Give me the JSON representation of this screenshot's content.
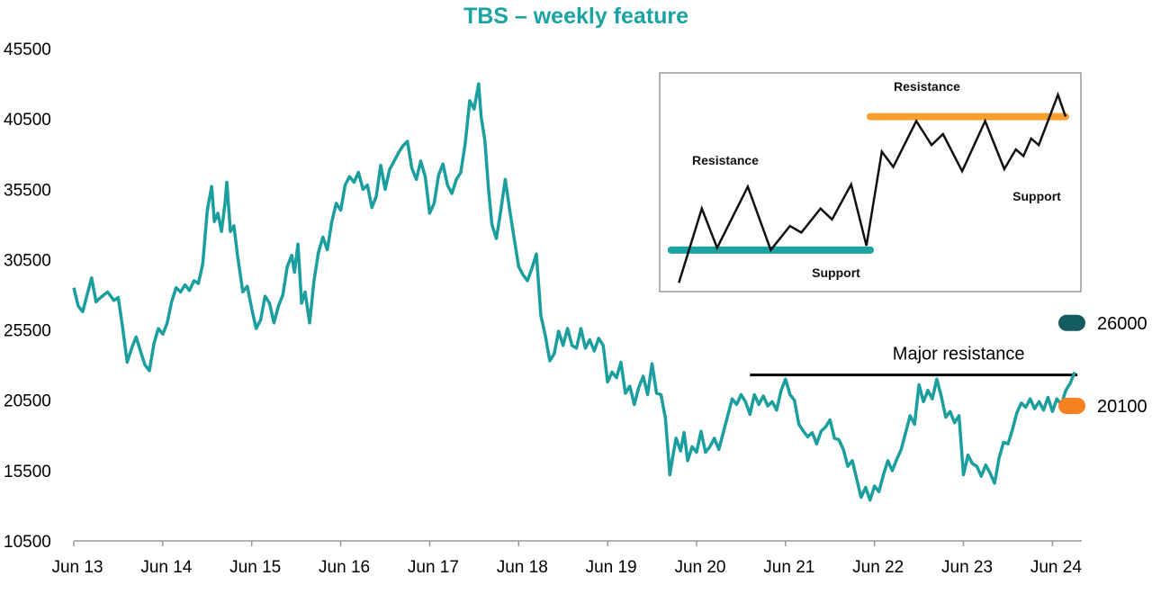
{
  "chart_data": {
    "type": "line",
    "title": "TBS – weekly feature",
    "xlabel": "",
    "ylabel": "",
    "ylim": [
      10500,
      45500
    ],
    "y_ticks": [
      "45500",
      "40500",
      "35500",
      "30500",
      "25500",
      "20500",
      "15500",
      "10500"
    ],
    "x_ticks": [
      "Jun 13",
      "Jun 14",
      "Jun 15",
      "Jun 16",
      "Jun 17",
      "Jun 18",
      "Jun 19",
      "Jun 20",
      "Jun 21",
      "Jun 22",
      "Jun 23",
      "Jun 24"
    ],
    "xlim": [
      2013.0,
      2024.33
    ],
    "grid": false,
    "colors": {
      "line": "#1a9e9e",
      "resistance": "#000000",
      "tag_high": "#135b5e",
      "tag_low": "#f5821f",
      "title": "#1aa3a3"
    },
    "series": [
      {
        "values": [
          [
            2013.0,
            28500
          ],
          [
            2013.05,
            27200
          ],
          [
            2013.1,
            26800
          ],
          [
            2013.15,
            28000
          ],
          [
            2013.2,
            29200
          ],
          [
            2013.25,
            27500
          ],
          [
            2013.3,
            27800
          ],
          [
            2013.38,
            28200
          ],
          [
            2013.45,
            27600
          ],
          [
            2013.5,
            27800
          ],
          [
            2013.55,
            25600
          ],
          [
            2013.6,
            23200
          ],
          [
            2013.65,
            24200
          ],
          [
            2013.7,
            25000
          ],
          [
            2013.75,
            24000
          ],
          [
            2013.8,
            23000
          ],
          [
            2013.85,
            22600
          ],
          [
            2013.9,
            24500
          ],
          [
            2013.95,
            25600
          ],
          [
            2014.0,
            25200
          ],
          [
            2014.05,
            26000
          ],
          [
            2014.1,
            27500
          ],
          [
            2014.15,
            28500
          ],
          [
            2014.2,
            28200
          ],
          [
            2014.25,
            28700
          ],
          [
            2014.3,
            28300
          ],
          [
            2014.35,
            29000
          ],
          [
            2014.4,
            28800
          ],
          [
            2014.45,
            30200
          ],
          [
            2014.5,
            34000
          ],
          [
            2014.55,
            35700
          ],
          [
            2014.58,
            33200
          ],
          [
            2014.62,
            33800
          ],
          [
            2014.66,
            32500
          ],
          [
            2014.7,
            34500
          ],
          [
            2014.72,
            36000
          ],
          [
            2014.76,
            32500
          ],
          [
            2014.8,
            32900
          ],
          [
            2014.84,
            30800
          ],
          [
            2014.9,
            28200
          ],
          [
            2014.95,
            28600
          ],
          [
            2015.0,
            27000
          ],
          [
            2015.05,
            25600
          ],
          [
            2015.1,
            26200
          ],
          [
            2015.15,
            27900
          ],
          [
            2015.2,
            27400
          ],
          [
            2015.25,
            26000
          ],
          [
            2015.3,
            27200
          ],
          [
            2015.35,
            28000
          ],
          [
            2015.4,
            30000
          ],
          [
            2015.45,
            30800
          ],
          [
            2015.48,
            29600
          ],
          [
            2015.52,
            31600
          ],
          [
            2015.56,
            27400
          ],
          [
            2015.6,
            28200
          ],
          [
            2015.65,
            26000
          ],
          [
            2015.7,
            29000
          ],
          [
            2015.75,
            31000
          ],
          [
            2015.8,
            32100
          ],
          [
            2015.85,
            31200
          ],
          [
            2015.9,
            33200
          ],
          [
            2015.95,
            34500
          ],
          [
            2016.0,
            34000
          ],
          [
            2016.05,
            35800
          ],
          [
            2016.1,
            36400
          ],
          [
            2016.15,
            36000
          ],
          [
            2016.2,
            36700
          ],
          [
            2016.25,
            35500
          ],
          [
            2016.3,
            35800
          ],
          [
            2016.35,
            34200
          ],
          [
            2016.4,
            35000
          ],
          [
            2016.45,
            37200
          ],
          [
            2016.5,
            35500
          ],
          [
            2016.55,
            36900
          ],
          [
            2016.6,
            37500
          ],
          [
            2016.65,
            38100
          ],
          [
            2016.7,
            38600
          ],
          [
            2016.75,
            38900
          ],
          [
            2016.8,
            37000
          ],
          [
            2016.85,
            36200
          ],
          [
            2016.9,
            37500
          ],
          [
            2016.95,
            36400
          ],
          [
            2017.0,
            33800
          ],
          [
            2017.05,
            34500
          ],
          [
            2017.1,
            36500
          ],
          [
            2017.15,
            37300
          ],
          [
            2017.2,
            35800
          ],
          [
            2017.25,
            35200
          ],
          [
            2017.3,
            36200
          ],
          [
            2017.35,
            36700
          ],
          [
            2017.4,
            38800
          ],
          [
            2017.45,
            41800
          ],
          [
            2017.5,
            41200
          ],
          [
            2017.55,
            43000
          ],
          [
            2017.58,
            40600
          ],
          [
            2017.62,
            39000
          ],
          [
            2017.66,
            35600
          ],
          [
            2017.7,
            33000
          ],
          [
            2017.75,
            32000
          ],
          [
            2017.8,
            34000
          ],
          [
            2017.85,
            36200
          ],
          [
            2017.9,
            34000
          ],
          [
            2017.95,
            32000
          ],
          [
            2018.0,
            30000
          ],
          [
            2018.05,
            29400
          ],
          [
            2018.1,
            29000
          ],
          [
            2018.15,
            29900
          ],
          [
            2018.2,
            30900
          ],
          [
            2018.25,
            26500
          ],
          [
            2018.3,
            25100
          ],
          [
            2018.35,
            23300
          ],
          [
            2018.4,
            23800
          ],
          [
            2018.45,
            25400
          ],
          [
            2018.5,
            24400
          ],
          [
            2018.55,
            25600
          ],
          [
            2018.6,
            24400
          ],
          [
            2018.65,
            24200
          ],
          [
            2018.7,
            25600
          ],
          [
            2018.75,
            24200
          ],
          [
            2018.8,
            24800
          ],
          [
            2018.85,
            24000
          ],
          [
            2018.9,
            24900
          ],
          [
            2018.95,
            24400
          ],
          [
            2019.0,
            21800
          ],
          [
            2019.05,
            22500
          ],
          [
            2019.1,
            22100
          ],
          [
            2019.15,
            23200
          ],
          [
            2019.2,
            21000
          ],
          [
            2019.25,
            21500
          ],
          [
            2019.3,
            20200
          ],
          [
            2019.35,
            21400
          ],
          [
            2019.4,
            22200
          ],
          [
            2019.45,
            20900
          ],
          [
            2019.5,
            23100
          ],
          [
            2019.55,
            21000
          ],
          [
            2019.6,
            20900
          ],
          [
            2019.65,
            19200
          ],
          [
            2019.7,
            15200
          ],
          [
            2019.73,
            16400
          ],
          [
            2019.77,
            17800
          ],
          [
            2019.82,
            16900
          ],
          [
            2019.86,
            18200
          ],
          [
            2019.9,
            16200
          ],
          [
            2019.95,
            17200
          ],
          [
            2020.0,
            16800
          ],
          [
            2020.05,
            18300
          ],
          [
            2020.1,
            16800
          ],
          [
            2020.15,
            17200
          ],
          [
            2020.2,
            17800
          ],
          [
            2020.25,
            17000
          ],
          [
            2020.3,
            18200
          ],
          [
            2020.35,
            19400
          ],
          [
            2020.4,
            20600
          ],
          [
            2020.45,
            20200
          ],
          [
            2020.5,
            20900
          ],
          [
            2020.55,
            20400
          ],
          [
            2020.6,
            19500
          ],
          [
            2020.65,
            20900
          ],
          [
            2020.7,
            20200
          ],
          [
            2020.75,
            20800
          ],
          [
            2020.8,
            20100
          ],
          [
            2020.85,
            20400
          ],
          [
            2020.9,
            19800
          ],
          [
            2020.95,
            21200
          ],
          [
            2021.0,
            22000
          ],
          [
            2021.05,
            20900
          ],
          [
            2021.1,
            20500
          ],
          [
            2021.15,
            18800
          ],
          [
            2021.2,
            18300
          ],
          [
            2021.25,
            17900
          ],
          [
            2021.3,
            18200
          ],
          [
            2021.35,
            17400
          ],
          [
            2021.4,
            18300
          ],
          [
            2021.45,
            18600
          ],
          [
            2021.5,
            19100
          ],
          [
            2021.55,
            17800
          ],
          [
            2021.6,
            17700
          ],
          [
            2021.65,
            17000
          ],
          [
            2021.7,
            15800
          ],
          [
            2021.75,
            16200
          ],
          [
            2021.8,
            14900
          ],
          [
            2021.85,
            13600
          ],
          [
            2021.9,
            14300
          ],
          [
            2021.95,
            13400
          ],
          [
            2022.0,
            14400
          ],
          [
            2022.05,
            14000
          ],
          [
            2022.1,
            15200
          ],
          [
            2022.15,
            16200
          ],
          [
            2022.2,
            15500
          ],
          [
            2022.25,
            16300
          ],
          [
            2022.3,
            17000
          ],
          [
            2022.35,
            18200
          ],
          [
            2022.4,
            19400
          ],
          [
            2022.45,
            18800
          ],
          [
            2022.5,
            21600
          ],
          [
            2022.55,
            20400
          ],
          [
            2022.6,
            21200
          ],
          [
            2022.65,
            20600
          ],
          [
            2022.7,
            22000
          ],
          [
            2022.75,
            20800
          ],
          [
            2022.8,
            19300
          ],
          [
            2022.85,
            19700
          ],
          [
            2022.9,
            18900
          ],
          [
            2022.95,
            19400
          ],
          [
            2023.0,
            15200
          ],
          [
            2023.05,
            16600
          ],
          [
            2023.1,
            16000
          ],
          [
            2023.15,
            15800
          ],
          [
            2023.2,
            15100
          ],
          [
            2023.25,
            15900
          ],
          [
            2023.3,
            15300
          ],
          [
            2023.35,
            14600
          ],
          [
            2023.4,
            16400
          ],
          [
            2023.45,
            17500
          ],
          [
            2023.5,
            17400
          ],
          [
            2023.55,
            18400
          ],
          [
            2023.6,
            19600
          ],
          [
            2023.65,
            20300
          ],
          [
            2023.7,
            20000
          ],
          [
            2023.75,
            20600
          ],
          [
            2023.8,
            19900
          ],
          [
            2023.85,
            20400
          ],
          [
            2023.9,
            19800
          ],
          [
            2023.95,
            20700
          ],
          [
            2024.0,
            19700
          ],
          [
            2024.05,
            20600
          ],
          [
            2024.1,
            20200
          ],
          [
            2024.15,
            21200
          ],
          [
            2024.2,
            21700
          ],
          [
            2024.25,
            22500
          ]
        ]
      }
    ],
    "annotations": {
      "major_resistance": {
        "label": "Major  resistance",
        "y": 22300,
        "x_start": 2020.6,
        "x_end": 2024.28
      },
      "tag_high": {
        "value": "26000",
        "y": 26000
      },
      "tag_low": {
        "value": "20100",
        "y": 20100
      }
    },
    "inset": {
      "type": "line",
      "labels": {
        "resistance_low": "Resistance",
        "support_low": "Support",
        "resistance_high": "Resistance",
        "support_high": "Support"
      },
      "series": [
        [
          0,
          4
        ],
        [
          6,
          38
        ],
        [
          10,
          20
        ],
        [
          18,
          48
        ],
        [
          24,
          19
        ],
        [
          29,
          30
        ],
        [
          32,
          27
        ],
        [
          37,
          38
        ],
        [
          40,
          33
        ],
        [
          45,
          49
        ],
        [
          49,
          21
        ],
        [
          53,
          64
        ],
        [
          56,
          57
        ],
        [
          62,
          78
        ],
        [
          66,
          67
        ],
        [
          69,
          72
        ],
        [
          74,
          55
        ],
        [
          80,
          78
        ],
        [
          85,
          56
        ],
        [
          88,
          65
        ],
        [
          90,
          62
        ],
        [
          92,
          70
        ],
        [
          94,
          67
        ],
        [
          99,
          90
        ],
        [
          101,
          80
        ]
      ],
      "xlim": [
        -5,
        105
      ],
      "ylim": [
        0,
        100
      ],
      "support_low_y": 19,
      "resistance_low_y": 50,
      "resistance_high_y": 80,
      "support_high_y": 50
    }
  }
}
